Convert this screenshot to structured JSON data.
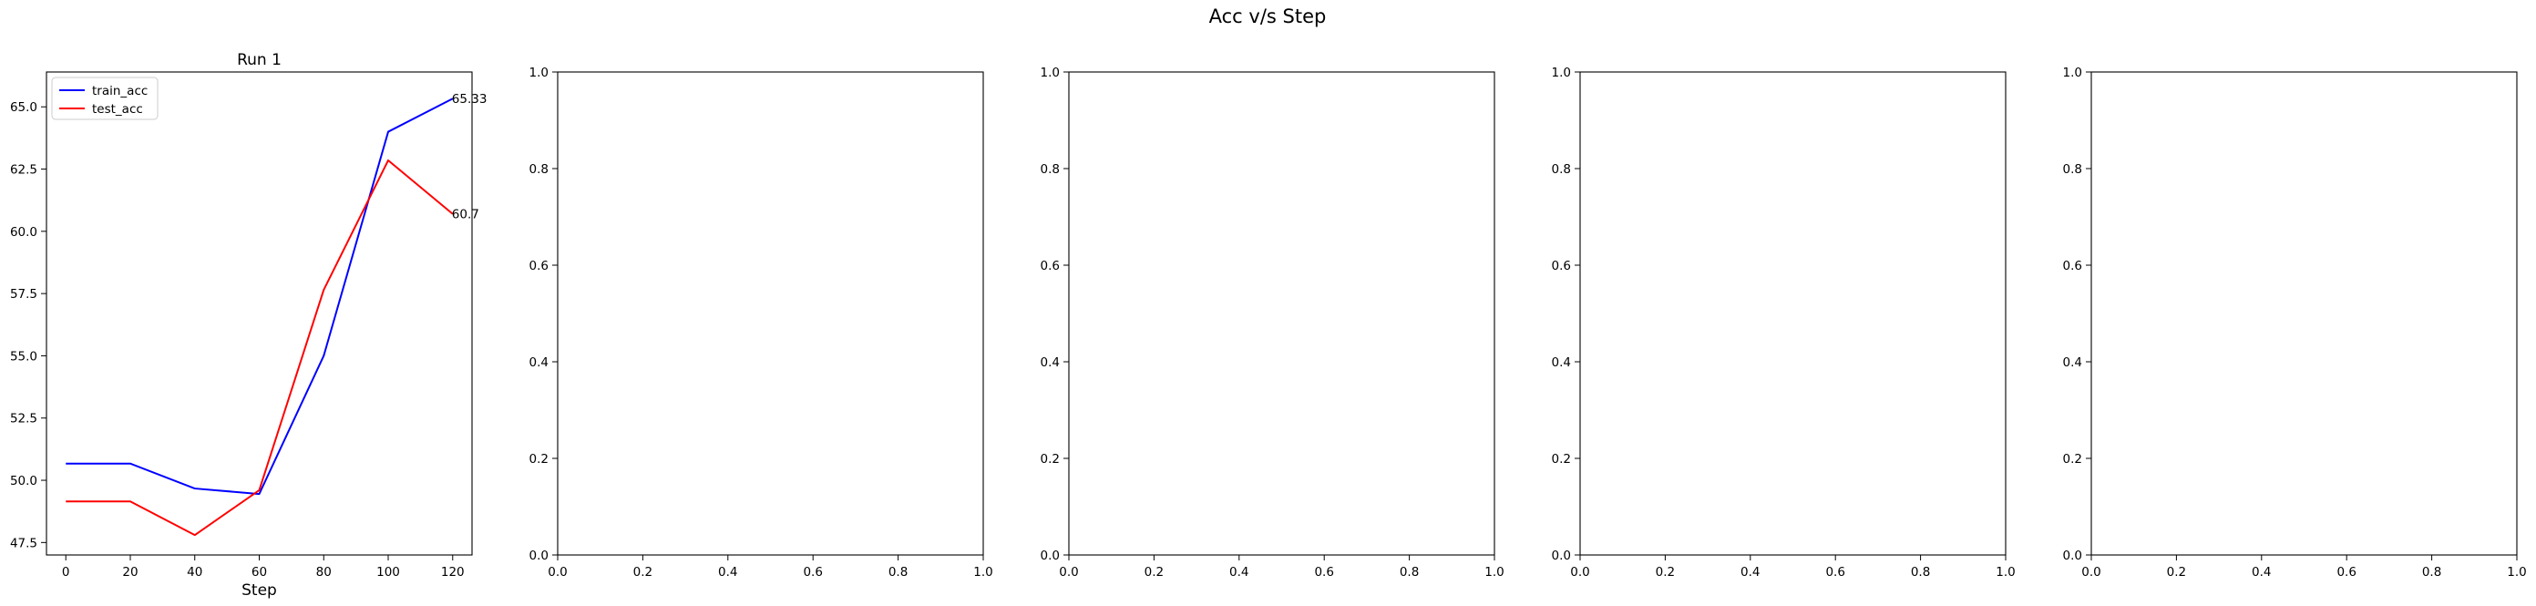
{
  "figure": {
    "suptitle": "Acc v/s Step"
  },
  "chart_data": [
    {
      "type": "line",
      "title": "Run 1",
      "xlabel": "Step",
      "ylabel": "",
      "x": [
        0,
        20,
        40,
        60,
        80,
        100,
        120
      ],
      "series": [
        {
          "name": "train_acc",
          "color": "#0000ff",
          "values": [
            50.67,
            50.67,
            49.67,
            49.45,
            55.0,
            64.0,
            65.33
          ]
        },
        {
          "name": "test_acc",
          "color": "#ff0000",
          "values": [
            49.15,
            49.15,
            47.8,
            49.6,
            57.65,
            62.85,
            60.7
          ]
        }
      ],
      "annotations": [
        "65.33",
        "60.7"
      ],
      "xlim": [
        -6,
        126
      ],
      "ylim": [
        47.0,
        66.4
      ],
      "xticks": [
        0,
        20,
        40,
        60,
        80,
        100,
        120
      ],
      "yticks": [
        47.5,
        50.0,
        52.5,
        55.0,
        57.5,
        60.0,
        62.5,
        65.0
      ],
      "ytick_labels": [
        "47.5",
        "50.0",
        "52.5",
        "55.0",
        "57.5",
        "60.0",
        "62.5",
        "65.0"
      ],
      "legend": "upper-left",
      "grid": false
    },
    {
      "type": "line",
      "title": "",
      "xlabel": "",
      "ylabel": "",
      "series": [],
      "xlim": [
        0,
        1
      ],
      "ylim": [
        0,
        1
      ],
      "xticks": [
        0,
        0.2,
        0.4,
        0.6,
        0.8,
        1.0
      ],
      "xtick_labels": [
        "0.0",
        "0.2",
        "0.4",
        "0.6",
        "0.8",
        "1.0"
      ],
      "yticks": [
        0,
        0.2,
        0.4,
        0.6,
        0.8,
        1.0
      ],
      "ytick_labels": [
        "0.0",
        "0.2",
        "0.4",
        "0.6",
        "0.8",
        "1.0"
      ]
    },
    {
      "type": "line",
      "title": "",
      "xlabel": "",
      "ylabel": "",
      "series": [],
      "xlim": [
        0,
        1
      ],
      "ylim": [
        0,
        1
      ],
      "xticks": [
        0,
        0.2,
        0.4,
        0.6,
        0.8,
        1.0
      ],
      "xtick_labels": [
        "0.0",
        "0.2",
        "0.4",
        "0.6",
        "0.8",
        "1.0"
      ],
      "yticks": [
        0,
        0.2,
        0.4,
        0.6,
        0.8,
        1.0
      ],
      "ytick_labels": [
        "0.0",
        "0.2",
        "0.4",
        "0.6",
        "0.8",
        "1.0"
      ]
    },
    {
      "type": "line",
      "title": "",
      "xlabel": "",
      "ylabel": "",
      "series": [],
      "xlim": [
        0,
        1
      ],
      "ylim": [
        0,
        1
      ],
      "xticks": [
        0,
        0.2,
        0.4,
        0.6,
        0.8,
        1.0
      ],
      "xtick_labels": [
        "0.0",
        "0.2",
        "0.4",
        "0.6",
        "0.8",
        "1.0"
      ],
      "yticks": [
        0,
        0.2,
        0.4,
        0.6,
        0.8,
        1.0
      ],
      "ytick_labels": [
        "0.0",
        "0.2",
        "0.4",
        "0.6",
        "0.8",
        "1.0"
      ]
    },
    {
      "type": "line",
      "title": "",
      "xlabel": "",
      "ylabel": "",
      "series": [],
      "xlim": [
        0,
        1
      ],
      "ylim": [
        0,
        1
      ],
      "xticks": [
        0,
        0.2,
        0.4,
        0.6,
        0.8,
        1.0
      ],
      "xtick_labels": [
        "0.0",
        "0.2",
        "0.4",
        "0.6",
        "0.8",
        "1.0"
      ],
      "yticks": [
        0,
        0.2,
        0.4,
        0.6,
        0.8,
        1.0
      ],
      "ytick_labels": [
        "0.0",
        "0.2",
        "0.4",
        "0.6",
        "0.8",
        "1.0"
      ]
    }
  ]
}
